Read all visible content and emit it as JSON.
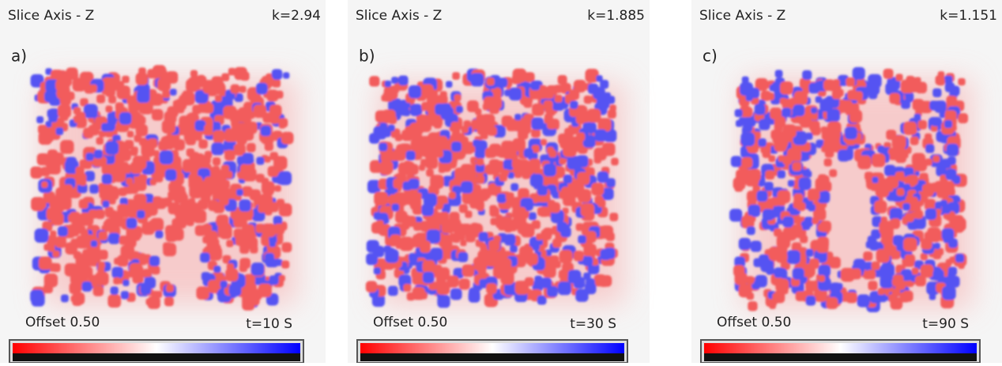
{
  "panels": [
    {
      "header": "Slice Axis - Z",
      "k": "k=2.94",
      "label": "a)",
      "offset": "Offset 0.50",
      "time": "t=10 S"
    },
    {
      "header": "Slice Axis - Z",
      "k": "k=1.885",
      "label": "b)",
      "offset": "Offset 0.50",
      "time": "t=30 S"
    },
    {
      "header": "Slice Axis - Z",
      "k": "k=1.151",
      "label": "c)",
      "offset": "Offset 0.50",
      "time": "t=90 S"
    }
  ]
}
